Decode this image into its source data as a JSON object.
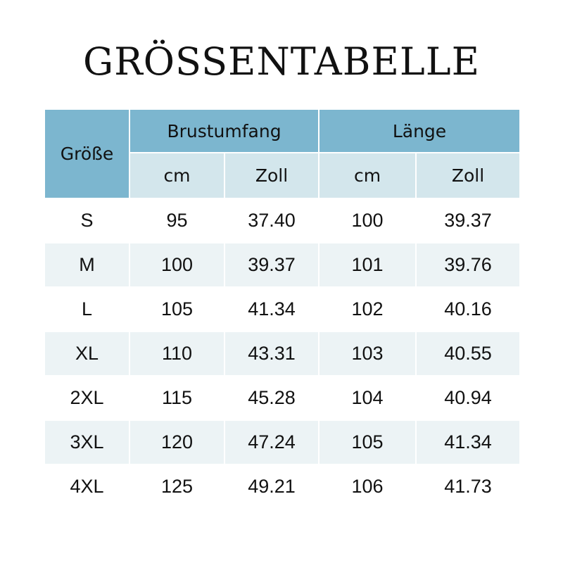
{
  "title": "GRÖSSENTABELLE",
  "header": {
    "size": "Größe",
    "groups": [
      "Brustumfang",
      "Länge"
    ],
    "units": [
      "cm",
      "Zoll",
      "cm",
      "Zoll"
    ]
  },
  "colors": {
    "header": "#7cb6cf",
    "subheader": "#d3e6ec",
    "alt_row": "#ecf3f5"
  },
  "rows": [
    [
      "S",
      "95",
      "37.40",
      "100",
      "39.37"
    ],
    [
      "M",
      "100",
      "39.37",
      "101",
      "39.76"
    ],
    [
      "L",
      "105",
      "41.34",
      "102",
      "40.16"
    ],
    [
      "XL",
      "110",
      "43.31",
      "103",
      "40.55"
    ],
    [
      "2XL",
      "115",
      "45.28",
      "104",
      "40.94"
    ],
    [
      "3XL",
      "120",
      "47.24",
      "105",
      "41.34"
    ],
    [
      "4XL",
      "125",
      "49.21",
      "106",
      "41.73"
    ]
  ]
}
